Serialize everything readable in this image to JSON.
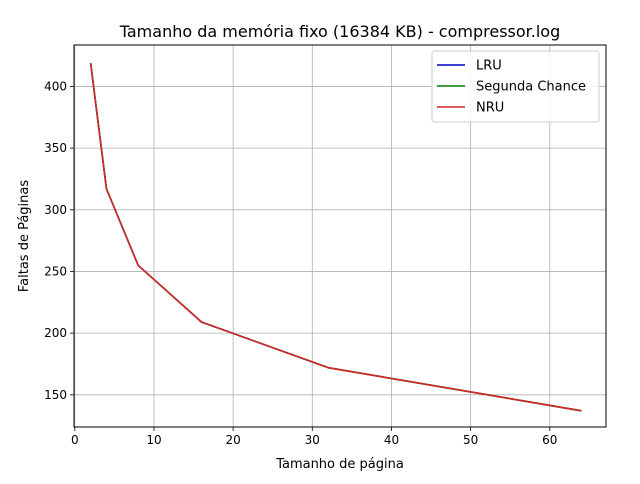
{
  "chart_data": {
    "type": "line",
    "title": "Tamanho da memória fixo (16384 KB) - compressor.log",
    "xlabel": "Tamanho de página",
    "ylabel": "Faltas de Páginas",
    "x": [
      2,
      4,
      8,
      16,
      32,
      64
    ],
    "xlim": [
      -0.1,
      67.1
    ],
    "ylim": [
      123.9,
      433.6
    ],
    "xticks": [
      0,
      10,
      20,
      30,
      40,
      50,
      60
    ],
    "yticks": [
      150,
      200,
      250,
      300,
      350,
      400
    ],
    "grid": true,
    "legend_position": "top-right",
    "series": [
      {
        "name": "LRU",
        "color": "#0000bf",
        "values": [
          419,
          317,
          255,
          209,
          172,
          137
        ]
      },
      {
        "name": "Segunda Chance",
        "color": "#008000",
        "values": [
          419,
          317,
          255,
          209,
          172,
          137
        ]
      },
      {
        "name": "NRU",
        "color": "#d62728",
        "values": [
          419,
          317,
          255,
          209,
          172,
          137
        ]
      }
    ]
  }
}
